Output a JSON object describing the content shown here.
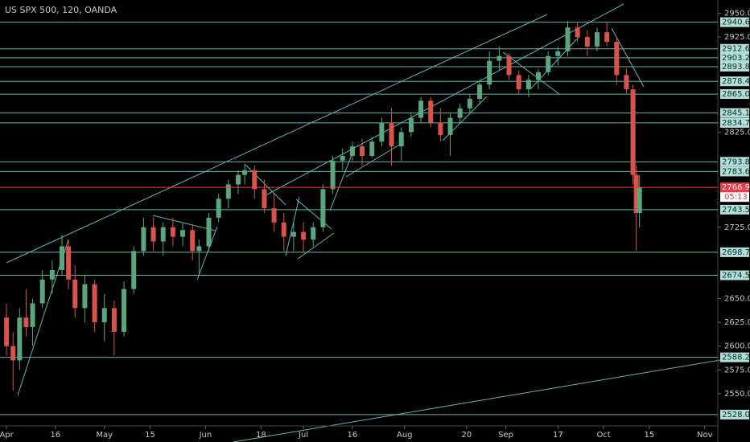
{
  "chart_data": {
    "type": "candlestick",
    "title": "US SPX 500, 120, OANDA",
    "x": [
      0,
      2,
      4,
      6,
      8,
      11,
      14,
      17,
      19,
      21,
      24,
      27,
      30,
      33,
      36,
      39,
      42,
      45,
      48,
      51,
      54,
      57,
      59,
      62,
      65,
      68,
      71,
      73,
      76,
      79,
      82,
      85,
      88,
      91,
      94,
      97,
      100,
      103,
      106,
      109,
      112,
      115,
      118,
      121,
      124,
      127,
      130,
      133,
      136,
      139,
      142,
      145,
      148,
      151,
      154,
      157,
      160,
      163,
      166,
      169,
      172,
      175,
      178,
      181,
      184,
      187,
      190,
      192,
      193,
      194
    ],
    "open": [
      2630,
      2600,
      2585,
      2630,
      2620,
      2645,
      2670,
      2680,
      2705,
      2670,
      2640,
      2665,
      2625,
      2640,
      2615,
      2660,
      2700,
      2725,
      2710,
      2725,
      2715,
      2722,
      2700,
      2705,
      2735,
      2755,
      2770,
      2780,
      2785,
      2765,
      2745,
      2730,
      2715,
      2720,
      2712,
      2725,
      2765,
      2795,
      2800,
      2810,
      2800,
      2815,
      2835,
      2810,
      2825,
      2840,
      2858,
      2835,
      2822,
      2840,
      2850,
      2860,
      2875,
      2900,
      2905,
      2885,
      2870,
      2880,
      2888,
      2905,
      2910,
      2935,
      2925,
      2915,
      2930,
      2920,
      2885,
      2870,
      2780,
      2740
    ],
    "high": [
      2645,
      2615,
      2640,
      2660,
      2650,
      2680,
      2690,
      2717,
      2712,
      2685,
      2675,
      2670,
      2655,
      2648,
      2668,
      2705,
      2735,
      2735,
      2730,
      2735,
      2730,
      2728,
      2712,
      2740,
      2760,
      2775,
      2785,
      2792,
      2790,
      2775,
      2760,
      2740,
      2730,
      2730,
      2730,
      2770,
      2800,
      2808,
      2815,
      2818,
      2820,
      2840,
      2850,
      2830,
      2845,
      2862,
      2862,
      2850,
      2845,
      2855,
      2865,
      2880,
      2910,
      2915,
      2908,
      2890,
      2885,
      2892,
      2910,
      2915,
      2942,
      2940,
      2932,
      2935,
      2940,
      2925,
      2892,
      2875,
      2790,
      2780
    ],
    "low": [
      2590,
      2553,
      2575,
      2610,
      2600,
      2640,
      2655,
      2675,
      2660,
      2630,
      2625,
      2615,
      2605,
      2590,
      2610,
      2655,
      2695,
      2700,
      2695,
      2705,
      2705,
      2690,
      2677,
      2700,
      2730,
      2745,
      2760,
      2770,
      2755,
      2740,
      2720,
      2700,
      2700,
      2698,
      2705,
      2720,
      2760,
      2785,
      2795,
      2790,
      2798,
      2810,
      2790,
      2795,
      2820,
      2835,
      2830,
      2815,
      2800,
      2835,
      2845,
      2855,
      2870,
      2890,
      2880,
      2865,
      2862,
      2870,
      2885,
      2895,
      2905,
      2920,
      2905,
      2910,
      2915,
      2875,
      2865,
      2770,
      2700,
      2725
    ],
    "close": [
      2600,
      2585,
      2630,
      2620,
      2645,
      2670,
      2680,
      2705,
      2670,
      2640,
      2665,
      2625,
      2640,
      2615,
      2660,
      2700,
      2725,
      2710,
      2725,
      2715,
      2722,
      2700,
      2705,
      2735,
      2755,
      2770,
      2780,
      2785,
      2765,
      2745,
      2730,
      2715,
      2720,
      2712,
      2725,
      2765,
      2795,
      2800,
      2810,
      2800,
      2815,
      2835,
      2810,
      2825,
      2840,
      2858,
      2835,
      2822,
      2840,
      2850,
      2860,
      2875,
      2900,
      2905,
      2885,
      2870,
      2880,
      2888,
      2905,
      2910,
      2935,
      2925,
      2915,
      2930,
      2920,
      2885,
      2870,
      2780,
      2740,
      2767
    ],
    "up_color": "#5aa77f",
    "down_color": "#d9534a",
    "level_color": "#5fb9b0",
    "xlim": [
      -2,
      218
    ],
    "ylim": [
      2522,
      2958
    ],
    "xticks": [
      {
        "value": 0,
        "label": "Apr"
      },
      {
        "value": 15,
        "label": "16"
      },
      {
        "value": 30,
        "label": "May"
      },
      {
        "value": 44,
        "label": "15"
      },
      {
        "value": 61,
        "label": "Jun"
      },
      {
        "value": 78,
        "label": "18"
      },
      {
        "value": 91,
        "label": "Jul"
      },
      {
        "value": 106,
        "label": "16"
      },
      {
        "value": 122,
        "label": "Aug"
      },
      {
        "value": 141,
        "label": "20"
      },
      {
        "value": 153,
        "label": "Sep"
      },
      {
        "value": 169,
        "label": "17"
      },
      {
        "value": 183,
        "label": "Oct"
      },
      {
        "value": 197,
        "label": "15"
      },
      {
        "value": 214,
        "label": "Nov"
      }
    ],
    "yticks": [
      {
        "value": 2550,
        "label": "2550.0"
      },
      {
        "value": 2575,
        "label": "2575.0"
      },
      {
        "value": 2600,
        "label": "2600.0"
      },
      {
        "value": 2625,
        "label": "2625.0"
      },
      {
        "value": 2650,
        "label": "2650.0"
      },
      {
        "value": 2725,
        "label": "2725.0"
      },
      {
        "value": 2825,
        "label": "2825.0"
      },
      {
        "value": 2925,
        "label": "2925.0"
      },
      {
        "value": 2950,
        "label": "2950.0"
      }
    ],
    "levels": [
      {
        "value": 2940.6,
        "label": "2940.6"
      },
      {
        "value": 2912.6,
        "label": "2912.6"
      },
      {
        "value": 2903.2,
        "label": "2903.2"
      },
      {
        "value": 2893.8,
        "label": "2893.8"
      },
      {
        "value": 2878.4,
        "label": "2878.4"
      },
      {
        "value": 2865,
        "label": "2865.0"
      },
      {
        "value": 2845.1,
        "label": "2845.1"
      },
      {
        "value": 2834.7,
        "label": "2834.7"
      },
      {
        "value": 2793.8,
        "label": "2793.8"
      },
      {
        "value": 2783.6,
        "label": "2783.6"
      },
      {
        "value": 2743.5,
        "label": "2743.5"
      },
      {
        "value": 2698.7,
        "label": "2698.7"
      },
      {
        "value": 2674.5,
        "label": "2674.5"
      },
      {
        "value": 2588.2,
        "label": "2588.2"
      },
      {
        "value": 2528,
        "label": "2528.0"
      }
    ],
    "current_price": {
      "value": 2766.9,
      "label": "2766.9",
      "color": "#f23645"
    },
    "countdown": "05:13"
  }
}
